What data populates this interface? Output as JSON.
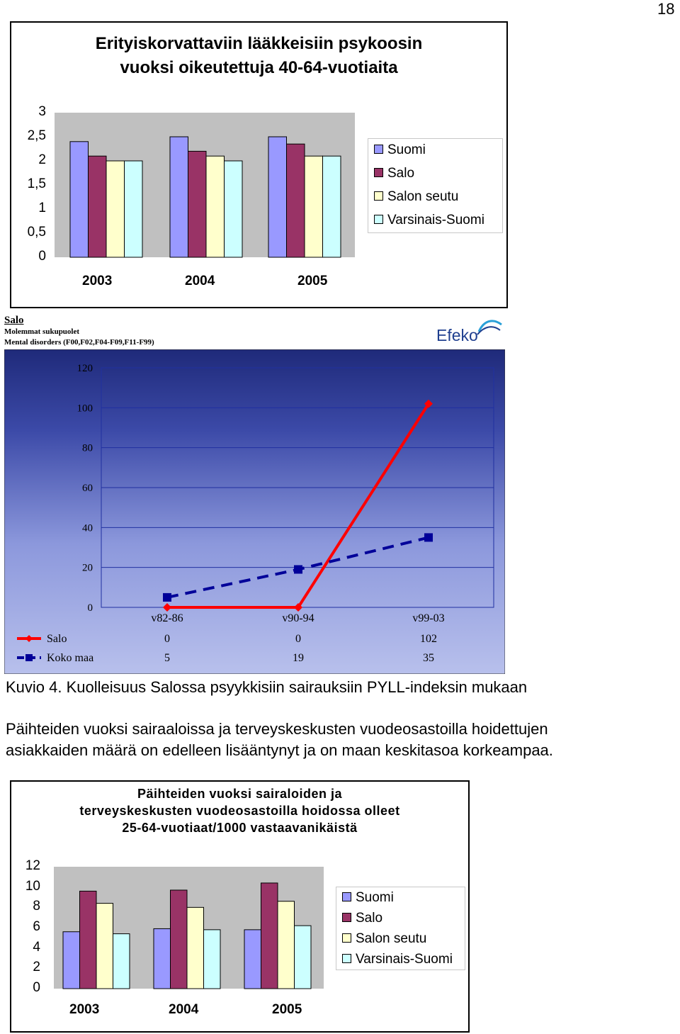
{
  "page_number": "18",
  "chart1": {
    "title_line1": "Erityiskorvattaviin lääkkeisiin psykoosin",
    "title_line2": "vuoksi oikeutettuja 40-64-vuotiaita",
    "y_ticks": [
      "0",
      "0,5",
      "1",
      "1,5",
      "2",
      "2,5",
      "3"
    ]
  },
  "line_chart": {
    "header_title": "Salo",
    "header_sub1": "Molemmat sukupuolet",
    "header_sub2": "Mental disorders (F00,F02,F04-F09,F11-F99)",
    "logo_text": "Efeko",
    "y_ticks": [
      "0",
      "20",
      "40",
      "60",
      "80",
      "100",
      "120"
    ],
    "table_rows": [
      {
        "label": "Salo",
        "values": [
          "0",
          "0",
          "102"
        ]
      },
      {
        "label": "Koko maa",
        "values": [
          "5",
          "19",
          "35"
        ]
      }
    ]
  },
  "caption": "Kuvio 4. Kuolleisuus Salossa psyykkisiin sairauksiin PYLL-indeksin mukaan",
  "paragraph_line1": "Päihteiden vuoksi sairaaloissa ja terveyskeskusten vuodeosastoilla hoidettujen",
  "paragraph_line2": "asiakkaiden määrä on edelleen lisääntynyt ja on maan keskitasoa korkeampaa.",
  "chart3": {
    "title_line1": "Päihteiden vuoksi sairaloiden ja",
    "title_line2": "terveyskeskusten vuodeosastoilla hoidossa olleet",
    "title_line3": "25-64-vuotiaat/1000 vastaavanikäistä",
    "y_ticks": [
      "0",
      "2",
      "4",
      "6",
      "8",
      "10",
      "12"
    ]
  },
  "legend_labels": [
    "Suomi",
    "Salo",
    "Salon seutu",
    "Varsinais-Suomi"
  ],
  "colors": {
    "suomi": "#9999ff",
    "salo": "#993366",
    "salon_seutu": "#ffffcc",
    "varsinais_suomi": "#ccffff",
    "plot_bg": "#c0c0c0",
    "line_bg_top": "#1f2a7a",
    "line_bg_bottom": "#b8c0ec",
    "salo_line": "#ff0000",
    "koko_maa_line": "#000099"
  },
  "chart_data": [
    {
      "type": "bar",
      "title": "Erityiskorvattaviin lääkkeisiin psykoosin vuoksi oikeutettuja 40-64-vuotiaita",
      "categories": [
        "2003",
        "2004",
        "2005"
      ],
      "series": [
        {
          "name": "Suomi",
          "values": [
            2.4,
            2.5,
            2.5
          ]
        },
        {
          "name": "Salo",
          "values": [
            2.1,
            2.2,
            2.35
          ]
        },
        {
          "name": "Salon seutu",
          "values": [
            2.0,
            2.1,
            2.1
          ]
        },
        {
          "name": "Varsinais-Suomi",
          "values": [
            2.0,
            2.0,
            2.1
          ]
        }
      ],
      "ylim": [
        0,
        3
      ],
      "legend": "right"
    },
    {
      "type": "line",
      "title": "Salo",
      "categories": [
        "v82-86",
        "v90-94",
        "v99-03"
      ],
      "series": [
        {
          "name": "Salo",
          "values": [
            0,
            0,
            102
          ]
        },
        {
          "name": "Koko maa",
          "values": [
            5,
            19,
            35
          ]
        }
      ],
      "ylim": [
        0,
        120
      ],
      "legend": "bottom"
    },
    {
      "type": "bar",
      "title": "Päihteiden vuoksi sairaloiden ja terveyskeskusten vuodeosastoilla hoidossa olleet 25-64-vuotiaat/1000 vastaavanikäistä",
      "categories": [
        "2003",
        "2004",
        "2005"
      ],
      "series": [
        {
          "name": "Suomi",
          "values": [
            5.6,
            5.9,
            5.8
          ]
        },
        {
          "name": "Salo",
          "values": [
            9.6,
            9.7,
            10.4
          ]
        },
        {
          "name": "Salon seutu",
          "values": [
            8.4,
            8.0,
            8.6
          ]
        },
        {
          "name": "Varsinais-Suomi",
          "values": [
            5.4,
            5.8,
            6.2
          ]
        }
      ],
      "ylim": [
        0,
        12
      ],
      "legend": "right"
    }
  ]
}
